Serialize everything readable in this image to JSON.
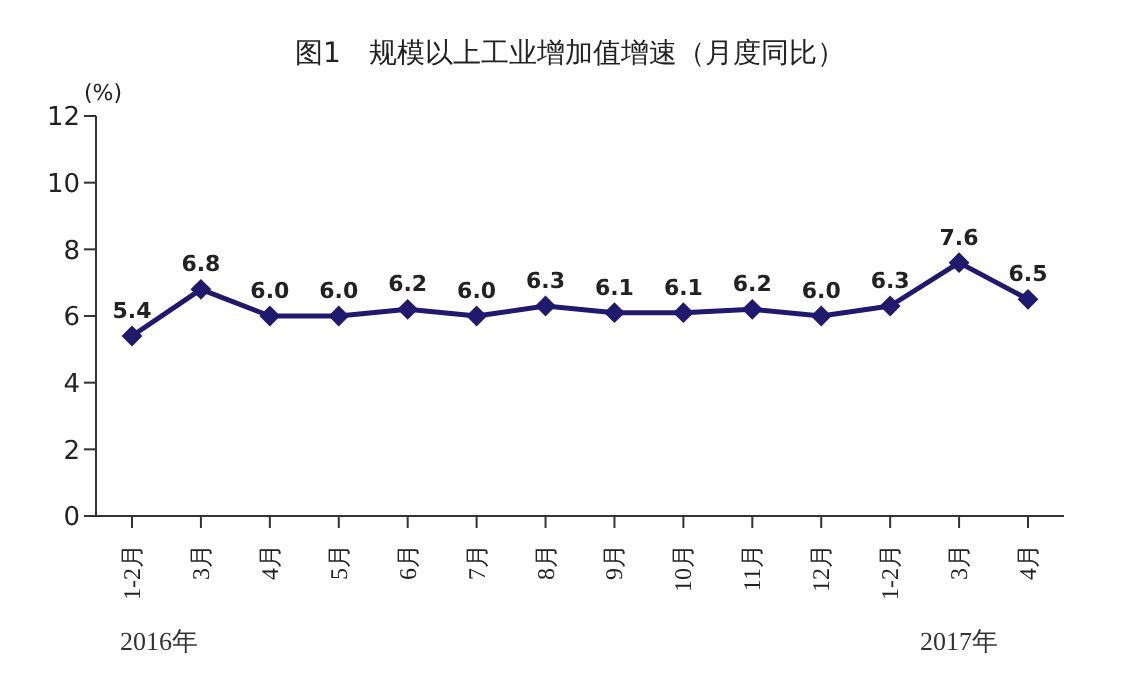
{
  "chart_data": {
    "type": "line",
    "title": "图1　规模以上工业增加值增速（月度同比）",
    "ylabel": "(%)",
    "categories": [
      "1-2月",
      "3月",
      "4月",
      "5月",
      "6月",
      "7月",
      "8月",
      "9月",
      "10月",
      "11月",
      "12月",
      "1-2月",
      "3月",
      "4月"
    ],
    "series": [
      {
        "color": "#1f1a6e",
        "values": [
          5.4,
          6.8,
          6.0,
          6.0,
          6.2,
          6.0,
          6.3,
          6.1,
          6.1,
          6.2,
          6.0,
          6.3,
          7.6,
          6.5
        ],
        "value_labels": [
          "5.4",
          "6.8",
          "6.0",
          "6.0",
          "6.2",
          "6.0",
          "6.3",
          "6.1",
          "6.1",
          "6.2",
          "6.0",
          "6.3",
          "7.6",
          "6.5"
        ]
      }
    ],
    "ylim": [
      0,
      12
    ],
    "yticks": [
      0,
      2,
      4,
      6,
      8,
      10,
      12
    ],
    "grid": false,
    "marker": "diamond",
    "line_style": "solid",
    "annotations": [
      "2016年",
      "2017年"
    ]
  }
}
